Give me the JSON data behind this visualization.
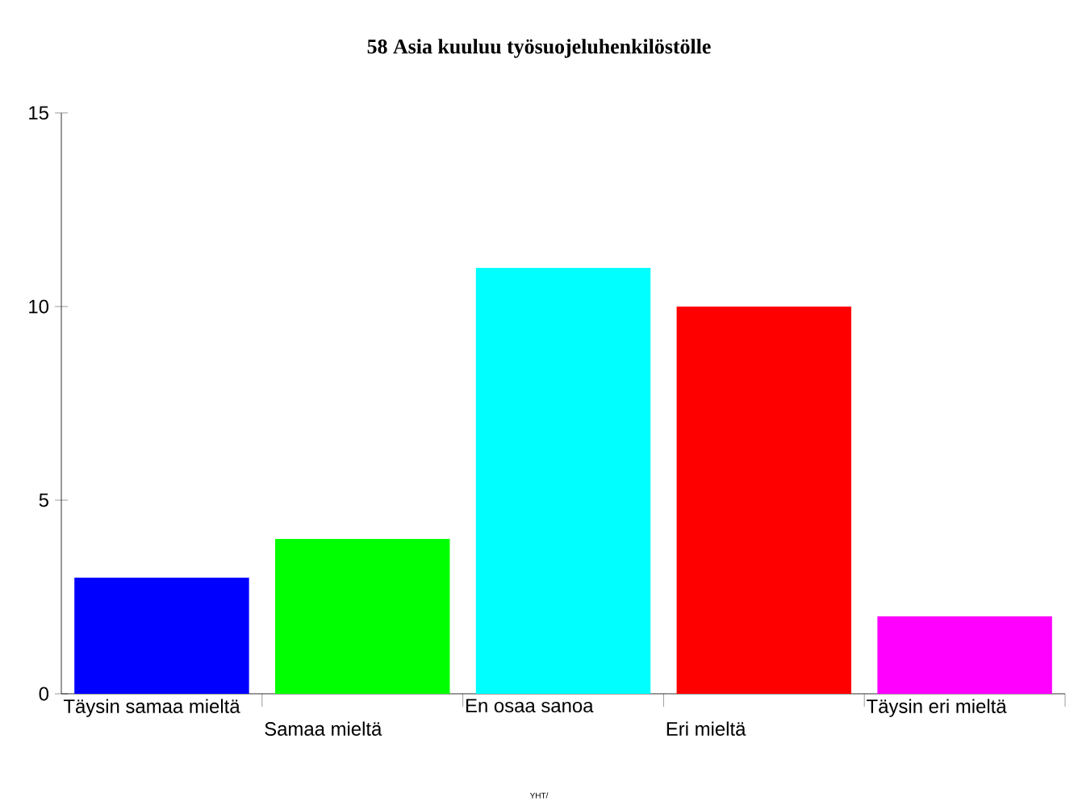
{
  "chart_data": {
    "type": "bar",
    "title": "58 Asia kuuluu työsuojeluhenkilöstölle",
    "categories": [
      "Täysin samaa mieltä",
      "Samaa mieltä",
      "En osaa sanoa",
      "Eri mieltä",
      "Täysin eri mieltä"
    ],
    "values": [
      3,
      4,
      11,
      10,
      2
    ],
    "colors": [
      "#0000ff",
      "#00ff00",
      "#00ffff",
      "#ff0000",
      "#ff00ff"
    ],
    "ylim": [
      0,
      15
    ],
    "yticks": [
      0,
      5,
      10,
      15
    ],
    "grid": false,
    "annotations": [
      "YHT/"
    ]
  }
}
